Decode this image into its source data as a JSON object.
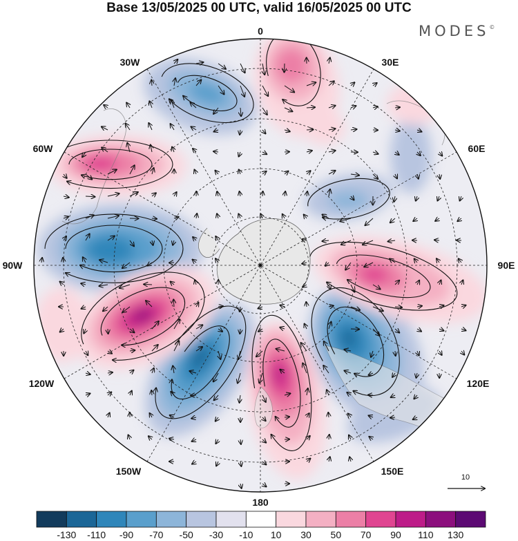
{
  "title": "Base 13/05/2025 00 UTC, valid 16/05/2025 00 UTC",
  "brand": "MODES",
  "brand_mark": "©",
  "longitude_labels": [
    "0",
    "30E",
    "60E",
    "90E",
    "120E",
    "150E",
    "180",
    "150W",
    "120W",
    "90W",
    "60W",
    "30W"
  ],
  "reference_vector_label": "10",
  "colorbar": {
    "tick_labels": [
      "-130",
      "-110",
      "-90",
      "-70",
      "-50",
      "-30",
      "-10",
      "10",
      "30",
      "50",
      "70",
      "90",
      "110",
      "130"
    ],
    "colors": [
      "#123b5c",
      "#1b6697",
      "#2f86ba",
      "#5a9fcc",
      "#8db5d9",
      "#b8c5e0",
      "#e2e1ee",
      "#ffffff",
      "#fad8df",
      "#f4b0c3",
      "#ec7fa6",
      "#e04591",
      "#bd1c88",
      "#8c0f7d",
      "#5c0a73"
    ]
  },
  "colors": {
    "land": "#e8e8e8",
    "coast": "#666666",
    "grid": "#222222"
  }
}
